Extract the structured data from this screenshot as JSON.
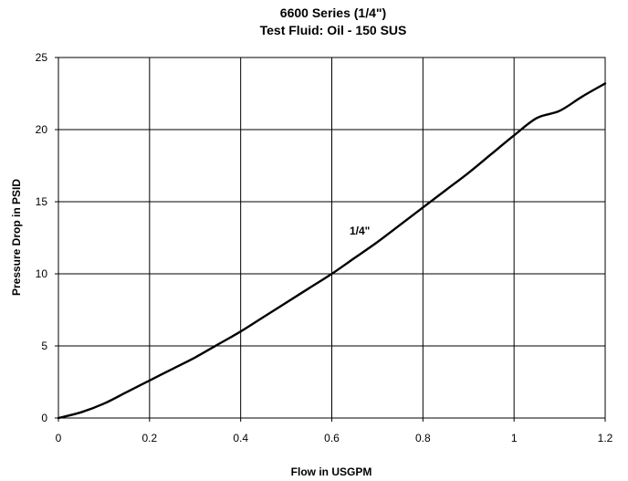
{
  "chart_data": {
    "type": "line",
    "title": "6600 Series (1/4\")",
    "subtitle": "Test Fluid: Oil - 150 SUS",
    "xlabel": "Flow in USGPM",
    "ylabel": "Pressure Drop in PSID",
    "xlim": [
      0,
      1.2
    ],
    "ylim": [
      0,
      25
    ],
    "x_ticks": [
      "0",
      "0.2",
      "0.4",
      "0.6",
      "0.8",
      "1",
      "1.2"
    ],
    "y_ticks": [
      "0",
      "5",
      "10",
      "15",
      "20",
      "25"
    ],
    "grid": true,
    "series": [
      {
        "name": "1/4\"",
        "color": "#000000",
        "x": [
          0,
          0.05,
          0.1,
          0.15,
          0.2,
          0.25,
          0.3,
          0.35,
          0.4,
          0.45,
          0.5,
          0.55,
          0.6,
          0.65,
          0.7,
          0.75,
          0.8,
          0.85,
          0.9,
          0.95,
          1.0,
          1.05,
          1.1,
          1.15,
          1.2
        ],
        "y": [
          0,
          0.4,
          1.0,
          1.8,
          2.6,
          3.4,
          4.2,
          5.1,
          6.0,
          7.0,
          8.0,
          9.0,
          10.0,
          11.1,
          12.2,
          13.4,
          14.6,
          15.8,
          17.0,
          18.3,
          19.6,
          20.8,
          21.3,
          22.3,
          23.2
        ]
      }
    ]
  }
}
